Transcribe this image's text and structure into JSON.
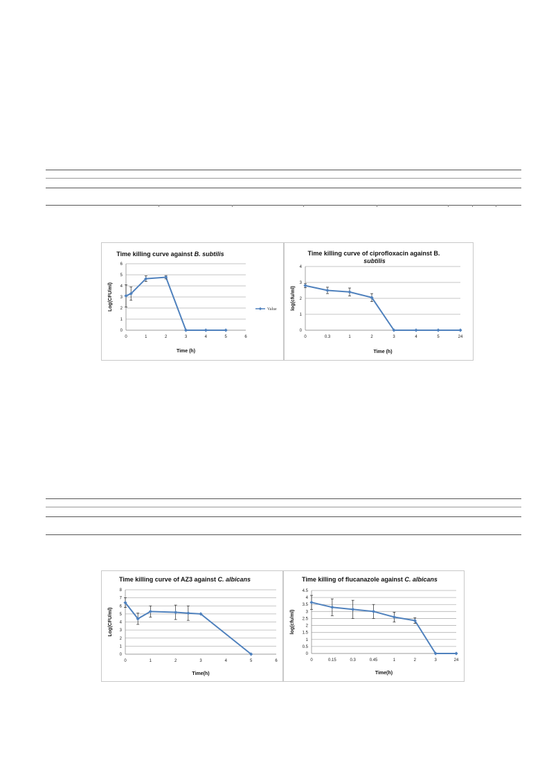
{
  "chart_data": [
    {
      "type": "line",
      "title": "Time killing curve against ",
      "title_italic": "B. subtilis",
      "xlabel": "Time (h)",
      "ylabel": "Log(CFU/ml)",
      "x_axis": "numeric",
      "xlim": [
        0,
        6
      ],
      "xticks": [
        "0",
        "1",
        "2",
        "3",
        "4",
        "5",
        "6"
      ],
      "ylim": [
        0,
        6
      ],
      "yticks": [
        "0",
        "1",
        "2",
        "3",
        "4",
        "5",
        "6"
      ],
      "grid": true,
      "legend": "right",
      "color": "#4f81bd",
      "series": [
        {
          "name": "Value",
          "x": [
            0,
            0.25,
            1,
            2,
            3,
            4,
            5
          ],
          "y": [
            3.1,
            3.3,
            4.65,
            4.78,
            0,
            0,
            0
          ],
          "err": [
            1.0,
            0.6,
            0.25,
            0.15,
            0,
            0,
            0
          ]
        }
      ]
    },
    {
      "type": "line",
      "title": "Time  killing curve of ciprofloxacin against B.",
      "title2": "subtilis",
      "xlabel": "Time  (h)",
      "ylabel": "log(cfu/ml)",
      "x_axis": "category",
      "categories": [
        "0",
        "0.3",
        "1",
        "2",
        "3",
        "4",
        "5",
        "24"
      ],
      "ylim": [
        0,
        4
      ],
      "yticks": [
        "0",
        "1",
        "2",
        "3",
        "4"
      ],
      "grid": true,
      "legend": "none",
      "color": "#4f81bd",
      "series": [
        {
          "y": [
            2.8,
            2.5,
            2.4,
            2.05,
            0,
            0,
            0,
            0
          ],
          "err": [
            0.12,
            0.2,
            0.25,
            0.25,
            0,
            0,
            0,
            0
          ]
        }
      ]
    },
    {
      "type": "line",
      "title": "Time killing curve of AZ3 against ",
      "title_italic": "C. albicans",
      "xlabel": "Time(h)",
      "ylabel": "Log(CFU/ml)",
      "x_axis": "numeric",
      "xlim": [
        0,
        6
      ],
      "xticks": [
        "0",
        "1",
        "2",
        "3",
        "4",
        "5",
        "6"
      ],
      "ylim": [
        0,
        8
      ],
      "yticks": [
        "0",
        "1",
        "2",
        "3",
        "4",
        "5",
        "6",
        "7",
        "8"
      ],
      "grid": true,
      "legend": "none",
      "color": "#4f81bd",
      "series": [
        {
          "x": [
            0,
            0.5,
            1,
            2,
            2.5,
            3,
            5
          ],
          "y": [
            6.4,
            4.4,
            5.3,
            5.2,
            5.1,
            5.0,
            0
          ],
          "err": [
            0.6,
            0.7,
            0.7,
            0.9,
            0.9,
            0,
            0
          ]
        }
      ]
    },
    {
      "type": "line",
      "title": "Time killing of flucanazole against ",
      "title_italic": "C. albicans",
      "xlabel": "Time(h)",
      "ylabel": "log(cfu/ml)",
      "x_axis": "category",
      "categories": [
        "0",
        "0.15",
        "0.3",
        "0.45",
        "1",
        "2",
        "3",
        "24"
      ],
      "ylim": [
        0,
        4.5
      ],
      "yticks": [
        "0",
        "0.5",
        "1",
        "1.5",
        "2",
        "2.5",
        "3",
        "3.5",
        "4",
        "4.5"
      ],
      "grid": true,
      "legend": "none",
      "color": "#4f81bd",
      "series": [
        {
          "y": [
            3.65,
            3.3,
            3.15,
            3.0,
            2.6,
            2.35,
            0,
            0
          ],
          "err": [
            0.5,
            0.6,
            0.65,
            0.5,
            0.35,
            0.2,
            0,
            0
          ]
        }
      ]
    }
  ]
}
